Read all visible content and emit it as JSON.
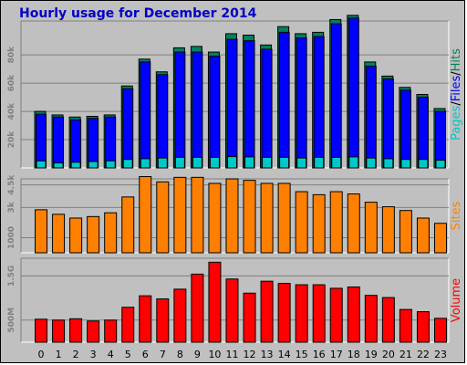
{
  "chart_data": {
    "type": "bar",
    "title": "Hourly usage for December 2014",
    "categories": [
      "0",
      "1",
      "2",
      "3",
      "4",
      "5",
      "6",
      "7",
      "8",
      "9",
      "10",
      "11",
      "12",
      "13",
      "14",
      "15",
      "16",
      "17",
      "18",
      "19",
      "20",
      "21",
      "22",
      "23"
    ],
    "panels": [
      {
        "id": "traffic",
        "ylabel_parts": [
          "Pages",
          "/",
          "Files",
          "/",
          "Hits"
        ],
        "ylabel_colors": [
          "#00c8c8",
          "#000000",
          "#0000ff",
          "#000000",
          "#00805c"
        ],
        "yticks": [
          {
            "label": "20k",
            "value": 20000
          },
          {
            "label": "40k",
            "value": 40000
          },
          {
            "label": "60k",
            "value": 60000
          },
          {
            "label": "80k",
            "value": 80000
          }
        ],
        "ylim": [
          0,
          104000
        ],
        "grid": true,
        "series": [
          {
            "name": "Hits",
            "color": "#00805c",
            "values": [
              40000,
              37500,
              36000,
              36500,
              37500,
              58000,
              77000,
              68000,
              85000,
              86000,
              82000,
              95000,
              94000,
              87000,
              100000,
              95000,
              96000,
              105000,
              108000,
              75000,
              65000,
              57000,
              52000,
              42000
            ]
          },
          {
            "name": "Files",
            "color": "#0000ff",
            "values": [
              38000,
              36000,
              34000,
              35000,
              36000,
              56000,
              75000,
              66000,
              82000,
              82000,
              79000,
              91000,
              90000,
              84000,
              96000,
              92000,
              93000,
              102000,
              106000,
              72000,
              63000,
              55000,
              50000,
              40000
            ]
          },
          {
            "name": "Pages",
            "color": "#00c8c8",
            "values": [
              5000,
              3500,
              4000,
              4500,
              5000,
              6000,
              6500,
              7000,
              7500,
              7500,
              7500,
              8000,
              7800,
              7500,
              7500,
              7000,
              7500,
              7500,
              7800,
              7000,
              6500,
              6000,
              6000,
              5500
            ]
          }
        ]
      },
      {
        "id": "sites",
        "ylabel_parts": [
          "Sites"
        ],
        "ylabel_colors": [
          "#ff8000"
        ],
        "yticks": [
          {
            "label": "1000",
            "value": 1000
          },
          {
            "label": "3k",
            "value": 3000
          },
          {
            "label": "4.5k",
            "value": 4500
          }
        ],
        "ylim": [
          0,
          4900
        ],
        "grid": true,
        "series": [
          {
            "name": "Sites",
            "color": "#ff8000",
            "values": [
              2850,
              2550,
              2300,
              2400,
              2650,
              3700,
              5050,
              4700,
              5000,
              5000,
              4600,
              4900,
              4800,
              4600,
              4600,
              4050,
              3850,
              4050,
              3900,
              3350,
              3050,
              2800,
              2300,
              1950
            ]
          }
        ]
      },
      {
        "id": "volume",
        "ylabel_parts": [
          "Volume"
        ],
        "ylabel_colors": [
          "#ff0000"
        ],
        "yticks": [
          {
            "label": "500M",
            "value": 500
          },
          {
            "label": "1.5G",
            "value": 1500
          }
        ],
        "ylim": [
          0,
          1900
        ],
        "grid": true,
        "series": [
          {
            "name": "Volume",
            "color": "#ff0000",
            "values": [
              520,
              500,
              530,
              480,
              500,
              790,
              1050,
              980,
              1200,
              1540,
              1810,
              1430,
              1110,
              1380,
              1330,
              1300,
              1300,
              1220,
              1250,
              1060,
              1010,
              740,
              690,
              540
            ]
          }
        ]
      }
    ]
  }
}
